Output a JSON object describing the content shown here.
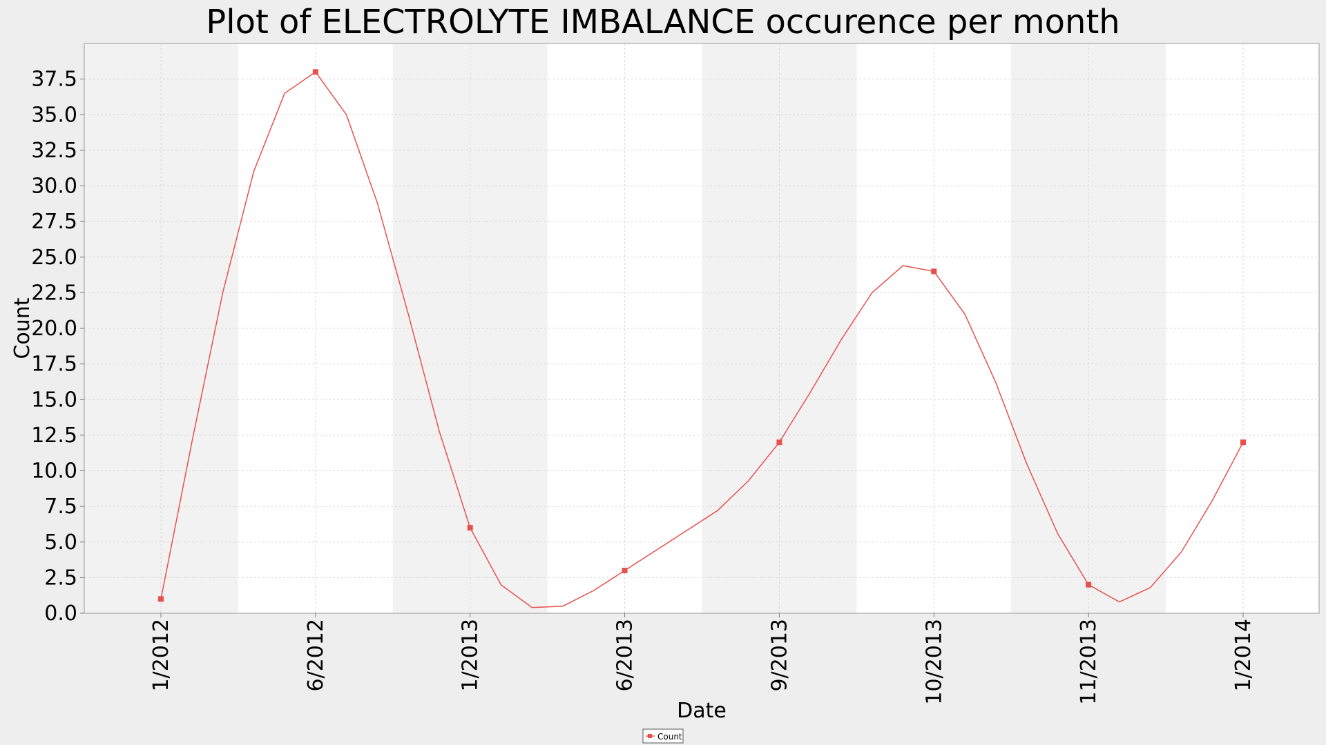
{
  "chart_data": {
    "type": "line",
    "title": "Plot of ELECTROLYTE IMBALANCE occurence per month",
    "xlabel": "Date",
    "ylabel": "Count",
    "ylim": [
      0,
      39.5
    ],
    "y_ticks": [
      "0.0",
      "2.5",
      "5.0",
      "7.5",
      "10.0",
      "12.5",
      "15.0",
      "17.5",
      "20.0",
      "22.5",
      "25.0",
      "27.5",
      "30.0",
      "32.5",
      "35.0",
      "37.5"
    ],
    "categories": [
      "1/2012",
      "6/2012",
      "1/2013",
      "6/2013",
      "9/2013",
      "10/2013",
      "11/2013",
      "1/2014"
    ],
    "grid": true,
    "legend_position": "bottom",
    "series": [
      {
        "name": "Count",
        "color": "#e8504a",
        "values": [
          1,
          38,
          6,
          3,
          12,
          24,
          2,
          12
        ],
        "curve": [
          1,
          12,
          22.5,
          31,
          36.5,
          38,
          35,
          28.8,
          21,
          12.8,
          6,
          2,
          0.4,
          0.5,
          1.6,
          3,
          4.4,
          5.8,
          7.2,
          9.3,
          12,
          15.5,
          19.2,
          22.5,
          24.4,
          24,
          21,
          16.2,
          10.5,
          5.6,
          2,
          0.8,
          1.8,
          4.3,
          7.9,
          12
        ]
      }
    ]
  }
}
